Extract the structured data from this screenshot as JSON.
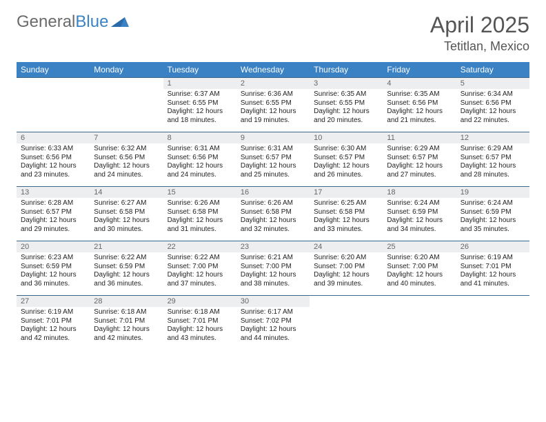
{
  "logo": {
    "text1": "General",
    "text2": "Blue"
  },
  "title": "April 2025",
  "location": "Tetitlan, Mexico",
  "colors": {
    "header_bg": "#3b82c4",
    "header_text": "#ffffff",
    "daynum_bg": "#eceeef",
    "daynum_text": "#666666",
    "body_text": "#222222",
    "rule": "#3b668a",
    "page_bg": "#ffffff",
    "logo_gray": "#6b6b6b",
    "logo_blue": "#3b82c4"
  },
  "typography": {
    "title_fontsize": 32,
    "location_fontsize": 18,
    "header_fontsize": 12,
    "daynum_fontsize": 11,
    "cell_fontsize": 10
  },
  "layout": {
    "columns": 7,
    "cell_min_height": 78
  },
  "dayNames": [
    "Sunday",
    "Monday",
    "Tuesday",
    "Wednesday",
    "Thursday",
    "Friday",
    "Saturday"
  ],
  "weeks": [
    [
      {
        "n": "",
        "sr": "",
        "ss": "",
        "dl": ""
      },
      {
        "n": "",
        "sr": "",
        "ss": "",
        "dl": ""
      },
      {
        "n": "1",
        "sr": "Sunrise: 6:37 AM",
        "ss": "Sunset: 6:55 PM",
        "dl": "Daylight: 12 hours and 18 minutes."
      },
      {
        "n": "2",
        "sr": "Sunrise: 6:36 AM",
        "ss": "Sunset: 6:55 PM",
        "dl": "Daylight: 12 hours and 19 minutes."
      },
      {
        "n": "3",
        "sr": "Sunrise: 6:35 AM",
        "ss": "Sunset: 6:55 PM",
        "dl": "Daylight: 12 hours and 20 minutes."
      },
      {
        "n": "4",
        "sr": "Sunrise: 6:35 AM",
        "ss": "Sunset: 6:56 PM",
        "dl": "Daylight: 12 hours and 21 minutes."
      },
      {
        "n": "5",
        "sr": "Sunrise: 6:34 AM",
        "ss": "Sunset: 6:56 PM",
        "dl": "Daylight: 12 hours and 22 minutes."
      }
    ],
    [
      {
        "n": "6",
        "sr": "Sunrise: 6:33 AM",
        "ss": "Sunset: 6:56 PM",
        "dl": "Daylight: 12 hours and 23 minutes."
      },
      {
        "n": "7",
        "sr": "Sunrise: 6:32 AM",
        "ss": "Sunset: 6:56 PM",
        "dl": "Daylight: 12 hours and 24 minutes."
      },
      {
        "n": "8",
        "sr": "Sunrise: 6:31 AM",
        "ss": "Sunset: 6:56 PM",
        "dl": "Daylight: 12 hours and 24 minutes."
      },
      {
        "n": "9",
        "sr": "Sunrise: 6:31 AM",
        "ss": "Sunset: 6:57 PM",
        "dl": "Daylight: 12 hours and 25 minutes."
      },
      {
        "n": "10",
        "sr": "Sunrise: 6:30 AM",
        "ss": "Sunset: 6:57 PM",
        "dl": "Daylight: 12 hours and 26 minutes."
      },
      {
        "n": "11",
        "sr": "Sunrise: 6:29 AM",
        "ss": "Sunset: 6:57 PM",
        "dl": "Daylight: 12 hours and 27 minutes."
      },
      {
        "n": "12",
        "sr": "Sunrise: 6:29 AM",
        "ss": "Sunset: 6:57 PM",
        "dl": "Daylight: 12 hours and 28 minutes."
      }
    ],
    [
      {
        "n": "13",
        "sr": "Sunrise: 6:28 AM",
        "ss": "Sunset: 6:57 PM",
        "dl": "Daylight: 12 hours and 29 minutes."
      },
      {
        "n": "14",
        "sr": "Sunrise: 6:27 AM",
        "ss": "Sunset: 6:58 PM",
        "dl": "Daylight: 12 hours and 30 minutes."
      },
      {
        "n": "15",
        "sr": "Sunrise: 6:26 AM",
        "ss": "Sunset: 6:58 PM",
        "dl": "Daylight: 12 hours and 31 minutes."
      },
      {
        "n": "16",
        "sr": "Sunrise: 6:26 AM",
        "ss": "Sunset: 6:58 PM",
        "dl": "Daylight: 12 hours and 32 minutes."
      },
      {
        "n": "17",
        "sr": "Sunrise: 6:25 AM",
        "ss": "Sunset: 6:58 PM",
        "dl": "Daylight: 12 hours and 33 minutes."
      },
      {
        "n": "18",
        "sr": "Sunrise: 6:24 AM",
        "ss": "Sunset: 6:59 PM",
        "dl": "Daylight: 12 hours and 34 minutes."
      },
      {
        "n": "19",
        "sr": "Sunrise: 6:24 AM",
        "ss": "Sunset: 6:59 PM",
        "dl": "Daylight: 12 hours and 35 minutes."
      }
    ],
    [
      {
        "n": "20",
        "sr": "Sunrise: 6:23 AM",
        "ss": "Sunset: 6:59 PM",
        "dl": "Daylight: 12 hours and 36 minutes."
      },
      {
        "n": "21",
        "sr": "Sunrise: 6:22 AM",
        "ss": "Sunset: 6:59 PM",
        "dl": "Daylight: 12 hours and 36 minutes."
      },
      {
        "n": "22",
        "sr": "Sunrise: 6:22 AM",
        "ss": "Sunset: 7:00 PM",
        "dl": "Daylight: 12 hours and 37 minutes."
      },
      {
        "n": "23",
        "sr": "Sunrise: 6:21 AM",
        "ss": "Sunset: 7:00 PM",
        "dl": "Daylight: 12 hours and 38 minutes."
      },
      {
        "n": "24",
        "sr": "Sunrise: 6:20 AM",
        "ss": "Sunset: 7:00 PM",
        "dl": "Daylight: 12 hours and 39 minutes."
      },
      {
        "n": "25",
        "sr": "Sunrise: 6:20 AM",
        "ss": "Sunset: 7:00 PM",
        "dl": "Daylight: 12 hours and 40 minutes."
      },
      {
        "n": "26",
        "sr": "Sunrise: 6:19 AM",
        "ss": "Sunset: 7:01 PM",
        "dl": "Daylight: 12 hours and 41 minutes."
      }
    ],
    [
      {
        "n": "27",
        "sr": "Sunrise: 6:19 AM",
        "ss": "Sunset: 7:01 PM",
        "dl": "Daylight: 12 hours and 42 minutes."
      },
      {
        "n": "28",
        "sr": "Sunrise: 6:18 AM",
        "ss": "Sunset: 7:01 PM",
        "dl": "Daylight: 12 hours and 42 minutes."
      },
      {
        "n": "29",
        "sr": "Sunrise: 6:18 AM",
        "ss": "Sunset: 7:01 PM",
        "dl": "Daylight: 12 hours and 43 minutes."
      },
      {
        "n": "30",
        "sr": "Sunrise: 6:17 AM",
        "ss": "Sunset: 7:02 PM",
        "dl": "Daylight: 12 hours and 44 minutes."
      },
      {
        "n": "",
        "sr": "",
        "ss": "",
        "dl": ""
      },
      {
        "n": "",
        "sr": "",
        "ss": "",
        "dl": ""
      },
      {
        "n": "",
        "sr": "",
        "ss": "",
        "dl": ""
      }
    ]
  ]
}
